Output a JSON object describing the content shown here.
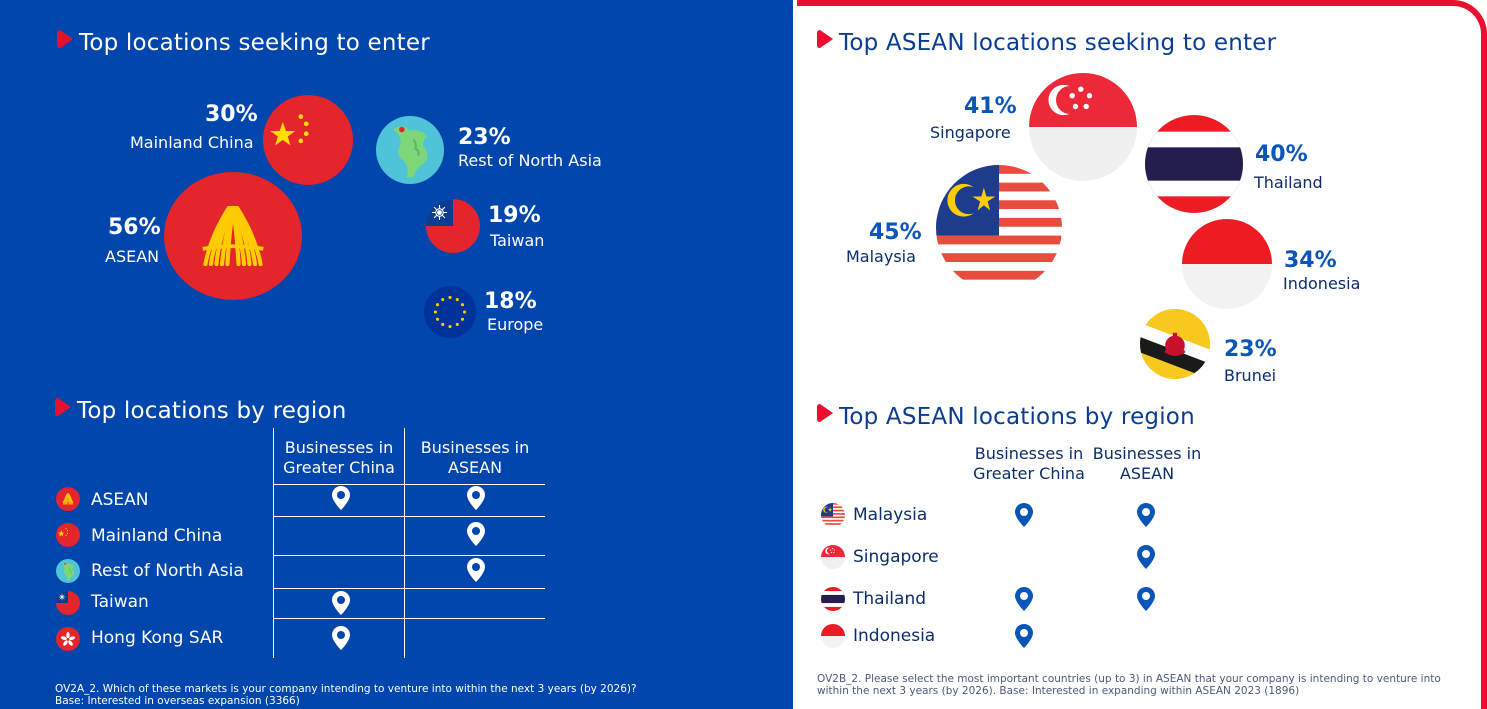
{
  "left_panel": {
    "title_enter": "Top locations seeking to enter",
    "title_region": "Top locations by region",
    "footnote": "OV2A_2. Which of these markets is your company intending to venture into within the next 3 years (by 2026)? Base: Interested in overseas expansion (3366)",
    "table": {
      "col1": "Businesses in Greater China",
      "col2": "Businesses in ASEAN",
      "rows": [
        {
          "icon": "asean-flag-icon",
          "label": "ASEAN"
        },
        {
          "icon": "china-flag-icon",
          "label": "Mainland China"
        },
        {
          "icon": "globe-icon",
          "label": "Rest of North Asia"
        },
        {
          "icon": "taiwan-flag-icon",
          "label": "Taiwan"
        },
        {
          "icon": "hong-kong-flag-icon",
          "label": "Hong Kong SAR"
        }
      ]
    }
  },
  "right_panel": {
    "title_enter": "Top ASEAN locations seeking to enter",
    "title_region": "Top ASEAN locations by region",
    "footnote": "OV2B_2. Please select the most important countries (up to 3) in ASEAN that your company is intending to venture into within the next 3 years (by 2026). Base: Interested in expanding within ASEAN 2023 (1896)",
    "table": {
      "col1": "Businesses in Greater China",
      "col2": "Businesses in ASEAN",
      "rows": [
        {
          "icon": "malaysia-flag-icon",
          "label": "Malaysia"
        },
        {
          "icon": "singapore-flag-icon",
          "label": "Singapore"
        },
        {
          "icon": "thailand-flag-icon",
          "label": "Thailand"
        },
        {
          "icon": "indonesia-flag-icon",
          "label": "Indonesia"
        }
      ]
    }
  },
  "colors": {
    "panel_blue": "#0046ad",
    "accent_red": "#e8102e",
    "text_blue": "#0a55b8"
  },
  "chart_data": [
    {
      "type": "bubble",
      "title": "Top locations seeking to enter",
      "points": [
        {
          "label": "ASEAN",
          "value": 56,
          "display": "56%"
        },
        {
          "label": "Mainland China",
          "value": 30,
          "display": "30%"
        },
        {
          "label": "Rest of North Asia",
          "value": 23,
          "display": "23%"
        },
        {
          "label": "Taiwan",
          "value": 19,
          "display": "19%"
        },
        {
          "label": "Europe",
          "value": 18,
          "display": "18%"
        }
      ]
    },
    {
      "type": "bubble",
      "title": "Top ASEAN locations seeking to enter",
      "points": [
        {
          "label": "Malaysia",
          "value": 45,
          "display": "45%"
        },
        {
          "label": "Singapore",
          "value": 41,
          "display": "41%"
        },
        {
          "label": "Thailand",
          "value": 40,
          "display": "40%"
        },
        {
          "label": "Indonesia",
          "value": 34,
          "display": "34%"
        },
        {
          "label": "Brunei",
          "value": 23,
          "display": "23%"
        }
      ]
    },
    {
      "type": "table",
      "title": "Top locations by region",
      "columns": [
        "Businesses in Greater China",
        "Businesses in ASEAN"
      ],
      "rows": [
        {
          "label": "ASEAN",
          "marks": [
            true,
            true
          ]
        },
        {
          "label": "Mainland China",
          "marks": [
            false,
            true
          ]
        },
        {
          "label": "Rest of North Asia",
          "marks": [
            false,
            true
          ]
        },
        {
          "label": "Taiwan",
          "marks": [
            true,
            false
          ]
        },
        {
          "label": "Hong Kong SAR",
          "marks": [
            true,
            false
          ]
        }
      ]
    },
    {
      "type": "table",
      "title": "Top ASEAN locations by region",
      "columns": [
        "Businesses in Greater China",
        "Businesses in ASEAN"
      ],
      "rows": [
        {
          "label": "Malaysia",
          "marks": [
            true,
            true
          ]
        },
        {
          "label": "Singapore",
          "marks": [
            false,
            true
          ]
        },
        {
          "label": "Thailand",
          "marks": [
            true,
            true
          ]
        },
        {
          "label": "Indonesia",
          "marks": [
            true,
            false
          ]
        }
      ]
    }
  ]
}
